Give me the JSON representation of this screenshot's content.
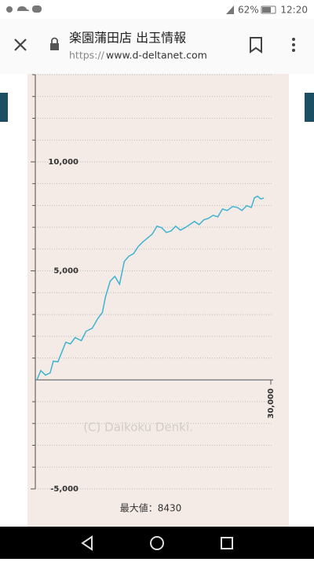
{
  "status_bar": {
    "battery": "62%",
    "time": "12:20"
  },
  "browser": {
    "title": "楽園蒲田店 出玉情報",
    "url_scheme": "https://",
    "url_host": "www.d-deltanet.com"
  },
  "chart_data": {
    "type": "line",
    "color": "#3fb3d1",
    "x": [
      0,
      500,
      1100,
      1700,
      2100,
      2700,
      3100,
      3700,
      4300,
      4900,
      5700,
      6300,
      7100,
      7800,
      8400,
      8800,
      9400,
      10000,
      10600,
      11200,
      11800,
      12400,
      13000,
      13600,
      14200,
      14800,
      15400,
      16000,
      16600,
      17200,
      17800,
      18400,
      19000,
      19600,
      20200,
      20800,
      21400,
      22000,
      22600,
      23200,
      23800,
      24400,
      25100,
      25700,
      26300,
      26900,
      27500,
      27900,
      28300,
      28700,
      29100
    ],
    "values": [
      0,
      430,
      220,
      320,
      860,
      830,
      1190,
      1730,
      1650,
      1940,
      1800,
      2230,
      2370,
      2810,
      3090,
      3810,
      4530,
      4750,
      4390,
      5430,
      5680,
      5790,
      6120,
      6330,
      6510,
      6690,
      7050,
      6980,
      6760,
      6830,
      7050,
      6870,
      6980,
      7120,
      7270,
      7120,
      7340,
      7410,
      7550,
      7480,
      7840,
      7770,
      7950,
      7910,
      7770,
      7990,
      7910,
      8350,
      8430,
      8300,
      8340
    ],
    "xlim": [
      0,
      30000
    ],
    "xticks": [
      {
        "value": 30000,
        "label": "30,000"
      }
    ],
    "ylim": [
      -5000,
      14000
    ],
    "yticks": [
      {
        "value": 10000,
        "label": "10,000"
      },
      {
        "value": 5000,
        "label": "5,000"
      },
      {
        "value": -5000,
        "label": "-5,000"
      }
    ],
    "minor_yticks": [
      -4000,
      -3000,
      -2000,
      -1000,
      1000,
      2000,
      3000,
      4000,
      6000,
      7000,
      8000,
      9000,
      11000,
      12000,
      13000,
      14000
    ],
    "grid": true,
    "watermark": "(C) Daikoku Denki.",
    "max_label": "最大値：8430"
  }
}
